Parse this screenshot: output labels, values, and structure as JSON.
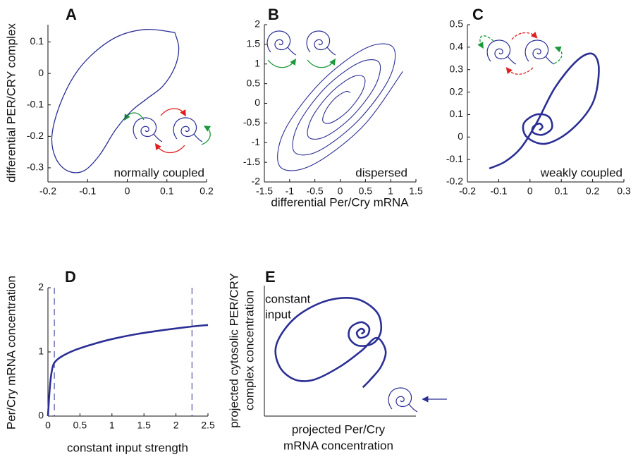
{
  "chart_data": [
    {
      "type": "line",
      "label": "A",
      "ylabel": "differential PER/CRY complex",
      "annotation": "normally coupled",
      "color": "#2b2f94",
      "xlim": [
        -0.2,
        0.2
      ],
      "ylim": [
        -0.345,
        0.155
      ],
      "xticks": [
        -0.2,
        -0.1,
        0,
        0.1,
        0.2
      ],
      "yticks": [
        -0.3,
        -0.2,
        -0.1,
        0,
        0.1
      ],
      "x": [
        0.12,
        0.05,
        -0.02,
        -0.08,
        -0.13,
        -0.17,
        -0.19,
        -0.18,
        -0.15,
        -0.11,
        -0.07,
        -0.03,
        0.01,
        0.05,
        0.09,
        0.12,
        0.13,
        0.12
      ],
      "y": [
        0.13,
        0.14,
        0.12,
        0.07,
        0.0,
        -0.1,
        -0.2,
        -0.27,
        -0.31,
        -0.31,
        -0.26,
        -0.18,
        -0.12,
        -0.08,
        -0.04,
        0.02,
        0.08,
        0.13
      ]
    },
    {
      "type": "line",
      "label": "B",
      "xlabel": "differential Per/Cry mRNA",
      "annotation": "dispersed",
      "color": "#2b2f94",
      "xlim": [
        -1.5,
        1.5
      ],
      "ylim": [
        -2,
        2
      ],
      "xticks": [
        -1.5,
        -1,
        -0.5,
        0,
        0.5,
        1,
        1.5
      ],
      "yticks": [
        -2,
        -1.5,
        -1,
        -0.5,
        0,
        0.5,
        1,
        1.5,
        2
      ],
      "x": [
        0.2,
        0.11,
        -0.1,
        -0.29,
        -0.34,
        -0.17,
        0.15,
        0.43,
        0.48,
        0.24,
        -0.19,
        -0.56,
        -0.63,
        -0.3,
        0.24,
        0.7,
        0.77,
        0.37,
        -0.29,
        -0.83,
        -0.91,
        -0.44,
        0.34,
        0.97,
        1.05,
        0.5,
        -0.39,
        -1.11,
        -1.19,
        -0.57,
        0.44,
        1.24
      ],
      "y": [
        0.27,
        0.3,
        0.13,
        -0.19,
        -0.46,
        -0.49,
        -0.2,
        0.28,
        0.65,
        0.67,
        0.26,
        -0.37,
        -0.85,
        -0.85,
        -0.33,
        0.46,
        1.04,
        1.03,
        0.4,
        -0.54,
        -1.23,
        -1.22,
        -0.46,
        0.63,
        1.42,
        1.4,
        0.53,
        -0.72,
        -1.61,
        -1.58,
        -0.6,
        0.81
      ]
    },
    {
      "type": "line",
      "label": "C",
      "annotation": "weakly coupled",
      "color": "#2b2f94",
      "xlim": [
        -0.2,
        0.3
      ],
      "ylim": [
        -0.2,
        0.5
      ],
      "xticks": [
        -0.2,
        -0.1,
        0,
        0.1,
        0.2,
        0.3
      ],
      "yticks": [
        -0.2,
        -0.1,
        0,
        0.1,
        0.2,
        0.3,
        0.4,
        0.5
      ],
      "x": [
        0.03,
        0.04,
        0.03,
        0.01,
        0.01,
        0.04,
        0.07,
        0.06,
        0.02,
        -0.02,
        -0.01,
        0.05,
        0.13,
        0.2,
        0.22,
        0.2,
        0.15,
        0.08,
        0.02,
        -0.03,
        -0.08,
        -0.13
      ],
      "y": [
        0.03,
        0.045,
        0.06,
        0.045,
        0.02,
        0.01,
        0.04,
        0.09,
        0.1,
        0.06,
        0.0,
        -0.03,
        0.03,
        0.15,
        0.3,
        0.37,
        0.34,
        0.22,
        0.06,
        -0.05,
        -0.11,
        -0.14
      ]
    },
    {
      "type": "line",
      "label": "D",
      "xlabel": "constant input strength",
      "ylabel": "Per/Cry mRNA concentration",
      "color": "#2b2f94",
      "xlim": [
        0,
        2.5
      ],
      "ylim": [
        0,
        2
      ],
      "xticks": [
        0,
        0.5,
        1,
        1.5,
        2,
        2.5
      ],
      "yticks": [
        0,
        1,
        2
      ],
      "vlines": [
        0.1,
        2.25
      ],
      "x": [
        0,
        0.03,
        0.06,
        0.1,
        0.2,
        0.4,
        0.7,
        1.0,
        1.4,
        1.8,
        2.2,
        2.5
      ],
      "y": [
        0,
        0.45,
        0.7,
        0.83,
        0.92,
        1.02,
        1.12,
        1.2,
        1.28,
        1.34,
        1.39,
        1.42
      ]
    },
    {
      "type": "line",
      "label": "E",
      "xlabel": [
        "projected Per/Cry",
        "mRNA concentration"
      ],
      "ylabel": [
        "projected cytosolic PER/CRY",
        "complex concentration"
      ],
      "annotation": [
        "constant",
        "input"
      ],
      "color": "#2b2f94",
      "xlim": [
        0,
        1
      ],
      "ylim": [
        0,
        1
      ],
      "x": [
        0.64,
        0.66,
        0.64,
        0.61,
        0.63,
        0.68,
        0.69,
        0.64,
        0.57,
        0.56,
        0.62,
        0.72,
        0.77,
        0.74,
        0.6,
        0.4,
        0.2,
        0.08,
        0.1,
        0.2,
        0.33,
        0.5,
        0.64,
        0.74,
        0.8,
        0.77,
        0.7,
        0.65
      ],
      "y": [
        0.63,
        0.65,
        0.67,
        0.64,
        0.6,
        0.62,
        0.68,
        0.72,
        0.68,
        0.6,
        0.54,
        0.56,
        0.66,
        0.8,
        0.9,
        0.88,
        0.75,
        0.55,
        0.38,
        0.28,
        0.28,
        0.38,
        0.5,
        0.6,
        0.5,
        0.38,
        0.28,
        0.22
      ]
    }
  ]
}
